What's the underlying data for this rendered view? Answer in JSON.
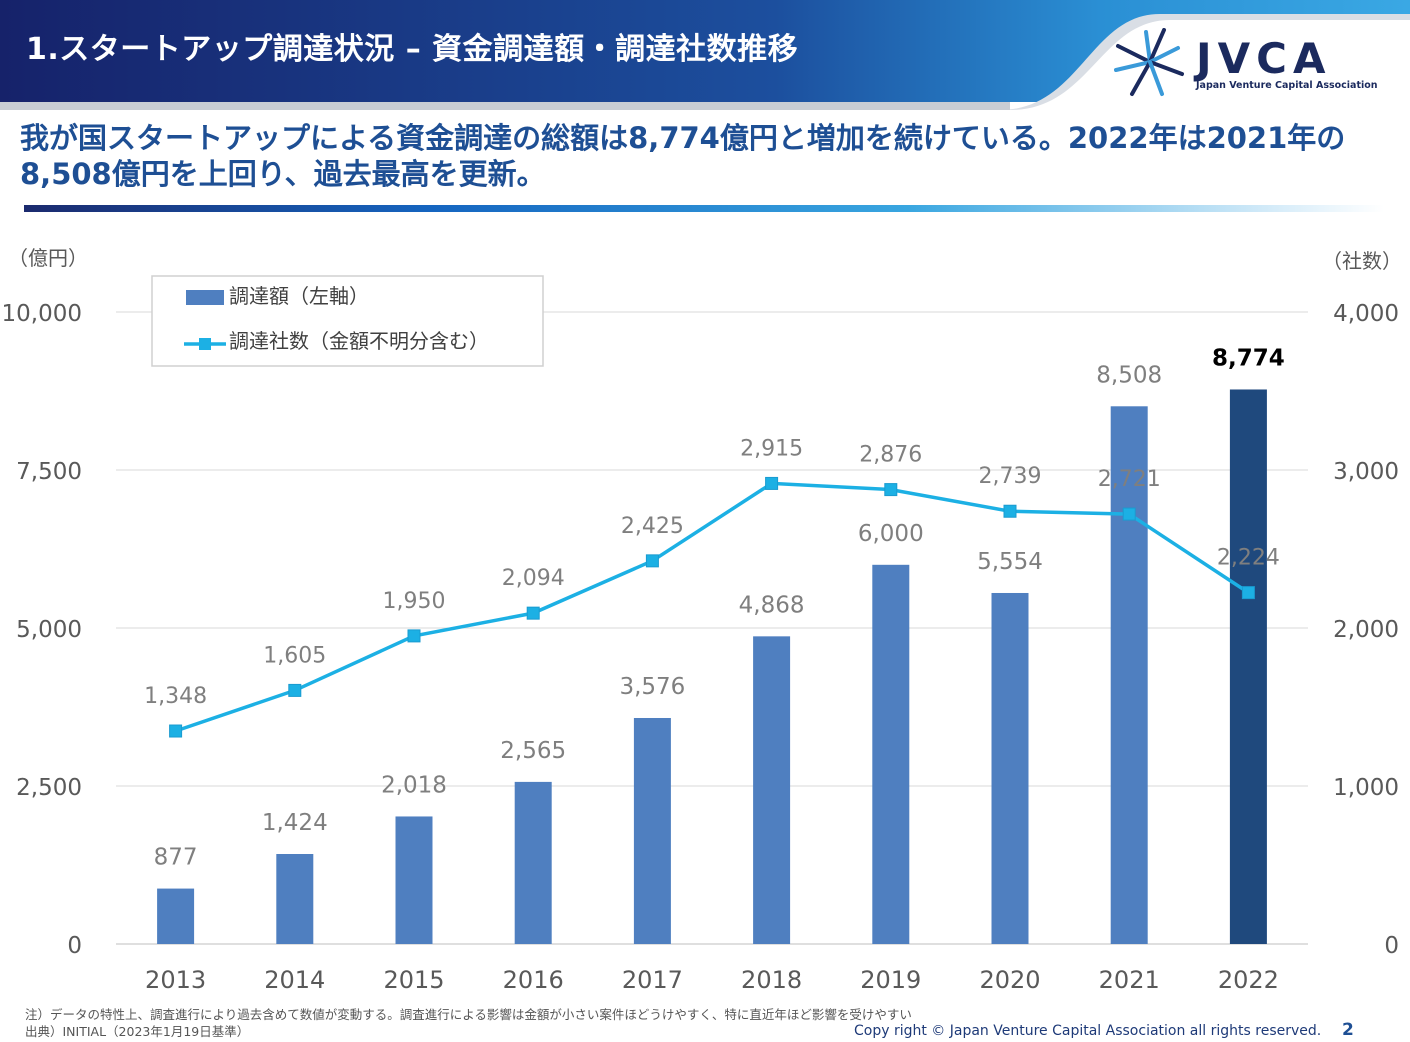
{
  "header": {
    "title": "1.スタートアップ調達状況 – 資金調達額・調達社数推移",
    "logo_text": "JVCA",
    "logo_sub": "Japan Venture Capital Association"
  },
  "headline": {
    "line1": "我が国スタートアップによる資金調達の総額は8,774億円と増加を続けている。2022年は2021年の",
    "line2": "8,508億円を上回り、過去最高を更新。"
  },
  "footer": {
    "note": "注）データの特性上、調査進行により過去含めて数値が変動する。調査進行による影響は金額が小さい案件ほどうけやすく、特に直近年ほど影響を受けやすい",
    "source": "出典）INITIAL（2023年1月19日基準）",
    "copyright": "Copy right © Japan Venture Capital Association all rights reserved.",
    "page": "2"
  },
  "colors": {
    "bar": "#4f7fc0",
    "bar_highlight": "#1f497d",
    "line": "#1cb0e4",
    "headline": "#1e4f94"
  },
  "chart_data": {
    "type": "bar",
    "categories": [
      "2013",
      "2014",
      "2015",
      "2016",
      "2017",
      "2018",
      "2019",
      "2020",
      "2021",
      "2022"
    ],
    "series": [
      {
        "name": "調達額（左軸）",
        "type": "bar",
        "axis": "left",
        "values": [
          877,
          1424,
          2018,
          2565,
          3576,
          4868,
          6000,
          5554,
          8508,
          8774
        ],
        "labels": [
          "877",
          "1,424",
          "2,018",
          "2,565",
          "3,576",
          "4,868",
          "6,000",
          "5,554",
          "8,508",
          "8,774"
        ],
        "highlight_index": 9
      },
      {
        "name": "調達社数（金額不明分含む）",
        "type": "line",
        "axis": "right",
        "values": [
          1348,
          1605,
          1950,
          2094,
          2425,
          2915,
          2876,
          2739,
          2721,
          2224
        ],
        "labels": [
          "1,348",
          "1,605",
          "1,950",
          "2,094",
          "2,425",
          "2,915",
          "2,876",
          "2,739",
          "2,721",
          "2,224"
        ]
      }
    ],
    "y_left": {
      "unit_label": "（億円）",
      "lim": [
        0,
        10000
      ],
      "ticks": [
        0,
        2500,
        5000,
        7500,
        10000
      ],
      "tick_labels": [
        "0",
        "2,500",
        "5,000",
        "7,500",
        "10,000"
      ]
    },
    "y_right": {
      "unit_label": "（社数）",
      "lim": [
        0,
        4000
      ],
      "ticks": [
        0,
        1000,
        2000,
        3000,
        4000
      ],
      "tick_labels": [
        "0",
        "1,000",
        "2,000",
        "3,000",
        "4,000"
      ]
    },
    "grid": true,
    "legend_position": "top-left"
  }
}
